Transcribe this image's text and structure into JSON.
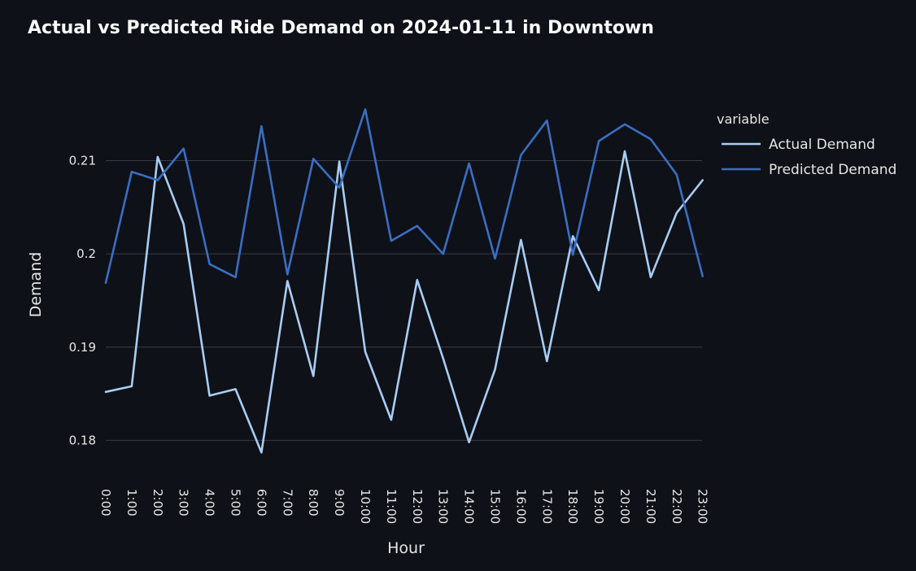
{
  "chart_data": {
    "type": "line",
    "title": "Actual vs Predicted Ride Demand on 2024-01-11 in Downtown",
    "xlabel": "Hour",
    "ylabel": "Demand",
    "categories": [
      "0:00",
      "1:00",
      "2:00",
      "3:00",
      "4:00",
      "5:00",
      "6:00",
      "7:00",
      "8:00",
      "9:00",
      "10:00",
      "11:00",
      "12:00",
      "13:00",
      "14:00",
      "15:00",
      "16:00",
      "17:00",
      "18:00",
      "19:00",
      "20:00",
      "21:00",
      "22:00",
      "23:00"
    ],
    "ylim": [
      0.1755,
      0.2192
    ],
    "yticks": [
      {
        "value": 0.18,
        "label": "0.18"
      },
      {
        "value": 0.19,
        "label": "0.19"
      },
      {
        "value": 0.2,
        "label": "0.2"
      },
      {
        "value": 0.21,
        "label": "0.21"
      }
    ],
    "grid": true,
    "legend": {
      "title": "variable",
      "placement": "right"
    },
    "series": [
      {
        "name": "Actual Demand",
        "color": "#a8cdf5",
        "values": [
          0.1852,
          0.1858,
          0.2104,
          0.2032,
          0.1848,
          0.1855,
          0.1787,
          0.1971,
          0.1869,
          0.2099,
          0.1895,
          0.1822,
          0.1972,
          0.1888,
          0.1798,
          0.1876,
          0.2015,
          0.1885,
          0.2019,
          0.1961,
          0.211,
          0.1975,
          0.2044,
          0.2079
        ]
      },
      {
        "name": "Predicted Demand",
        "color": "#3a6ec4",
        "values": [
          0.1969,
          0.2088,
          0.2079,
          0.2113,
          0.1989,
          0.1975,
          0.2137,
          0.1978,
          0.2102,
          0.2071,
          0.2155,
          0.2014,
          0.203,
          0.2,
          0.2097,
          0.1995,
          0.2106,
          0.2143,
          0.1999,
          0.2121,
          0.2139,
          0.2123,
          0.2085,
          0.1976
        ]
      }
    ]
  }
}
